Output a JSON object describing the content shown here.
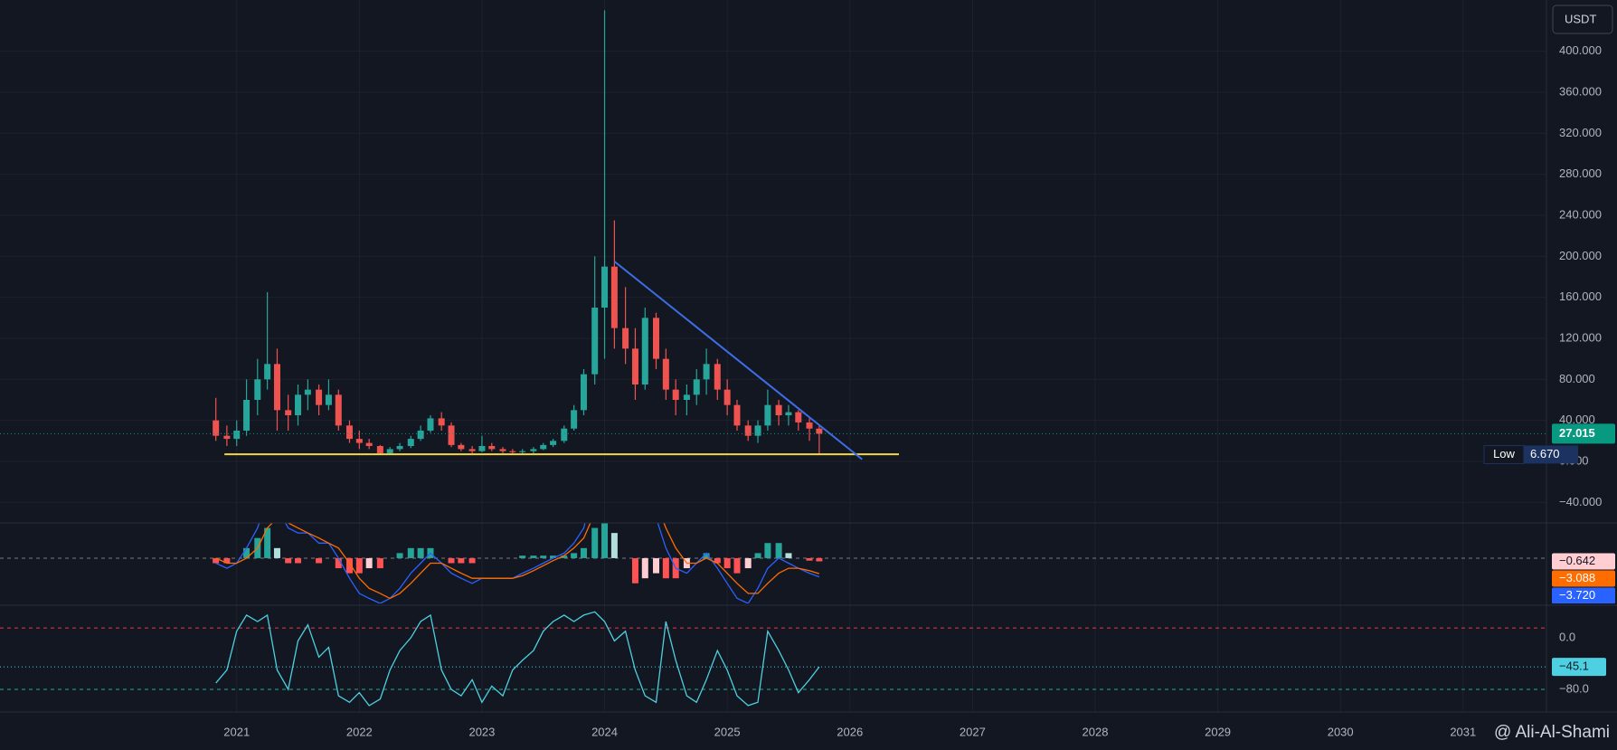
{
  "chart_data": {
    "type": "candlestick",
    "currency": "USDT",
    "watermark": "@ Ali-Al-Shami",
    "x": [
      2020.83,
      2020.92,
      2021.0,
      2021.08,
      2021.17,
      2021.25,
      2021.33,
      2021.42,
      2021.5,
      2021.58,
      2021.67,
      2021.75,
      2021.83,
      2021.92,
      2022.0,
      2022.08,
      2022.17,
      2022.25,
      2022.33,
      2022.42,
      2022.5,
      2022.58,
      2022.67,
      2022.75,
      2022.83,
      2022.92,
      2023.0,
      2023.08,
      2023.17,
      2023.25,
      2023.33,
      2023.42,
      2023.5,
      2023.58,
      2023.67,
      2023.75,
      2023.83,
      2023.92,
      2024.0,
      2024.08,
      2024.17,
      2024.25,
      2024.33,
      2024.42,
      2024.5,
      2024.58,
      2024.67,
      2024.75,
      2024.83,
      2024.92,
      2025.0,
      2025.08,
      2025.17,
      2025.25,
      2025.33,
      2025.42,
      2025.5,
      2025.58,
      2025.67,
      2025.75
    ],
    "xlim": [
      2019.07,
      2031.68
    ],
    "xticks": [
      2021,
      2022,
      2023,
      2024,
      2025,
      2026,
      2027,
      2028,
      2029,
      2030,
      2031
    ],
    "open": [
      40,
      25,
      22,
      30,
      60,
      80,
      95,
      50,
      45,
      65,
      70,
      55,
      65,
      35,
      22,
      18,
      15,
      8,
      12,
      15,
      22,
      30,
      42,
      35,
      16,
      12,
      10,
      15,
      12,
      10,
      9,
      10,
      12,
      16,
      20,
      32,
      50,
      85,
      150,
      190,
      130,
      110,
      75,
      140,
      100,
      70,
      60,
      65,
      80,
      95,
      70,
      55,
      35,
      25,
      35,
      55,
      45,
      48,
      38,
      32
    ],
    "high": [
      62,
      35,
      40,
      80,
      100,
      165,
      110,
      65,
      75,
      80,
      75,
      80,
      70,
      40,
      30,
      22,
      16,
      14,
      18,
      25,
      35,
      45,
      48,
      38,
      18,
      15,
      25,
      18,
      14,
      12,
      12,
      14,
      18,
      22,
      35,
      55,
      90,
      200,
      440,
      235,
      170,
      130,
      150,
      145,
      110,
      80,
      75,
      90,
      110,
      100,
      80,
      60,
      40,
      40,
      70,
      60,
      55,
      50,
      42,
      35
    ],
    "low": [
      20,
      15,
      15,
      25,
      45,
      70,
      30,
      30,
      35,
      50,
      45,
      50,
      30,
      18,
      12,
      12,
      6.67,
      7,
      10,
      13,
      20,
      28,
      30,
      14,
      10,
      8,
      9,
      10,
      8,
      7,
      7,
      8,
      11,
      14,
      18,
      30,
      45,
      75,
      100,
      110,
      95,
      60,
      70,
      90,
      60,
      45,
      45,
      55,
      65,
      60,
      45,
      30,
      20,
      18,
      30,
      35,
      35,
      30,
      20,
      7
    ],
    "close": [
      25,
      22,
      30,
      60,
      80,
      95,
      50,
      45,
      65,
      70,
      55,
      65,
      35,
      22,
      18,
      15,
      8,
      12,
      15,
      22,
      30,
      42,
      35,
      16,
      12,
      10,
      15,
      12,
      10,
      9,
      10,
      12,
      16,
      20,
      32,
      50,
      85,
      150,
      190,
      130,
      110,
      75,
      140,
      100,
      70,
      60,
      65,
      80,
      95,
      70,
      55,
      35,
      25,
      35,
      55,
      45,
      48,
      38,
      32,
      27.015
    ],
    "up_color": "#26a69a",
    "down_color": "#ef5350",
    "ylim": [
      -60,
      450
    ],
    "yticks": [
      {
        "value": -40,
        "label": "−40.000"
      },
      {
        "value": 0,
        "label": "0.000"
      },
      {
        "value": 40,
        "label": "40.000"
      },
      {
        "value": 80,
        "label": "80.000"
      },
      {
        "value": 120,
        "label": "120.000"
      },
      {
        "value": 160,
        "label": "160.000"
      },
      {
        "value": 200,
        "label": "200.000"
      },
      {
        "value": 240,
        "label": "240.000"
      },
      {
        "value": 280,
        "label": "280.000"
      },
      {
        "value": 320,
        "label": "320.000"
      },
      {
        "value": 360,
        "label": "360.000"
      },
      {
        "value": 400,
        "label": "400.000"
      }
    ],
    "grid": true,
    "last_price": 27.015,
    "last_price_color": "#089981",
    "period_low": {
      "name": "Low",
      "value": 6.67,
      "label": "6.670",
      "color": "#1c3260"
    },
    "trendline": {
      "x": [
        2024.08,
        2026.1
      ],
      "y": [
        195,
        2
      ],
      "color": "#3d6ee8"
    },
    "support": {
      "x": [
        2020.9,
        2026.4
      ],
      "y": [
        7,
        7
      ],
      "color": "#f5d742"
    },
    "indicators": [
      {
        "type": "macd",
        "ylim": [
          -9,
          7
        ],
        "histogram": {
          "values": [
            -1,
            -1,
            0,
            2,
            4,
            6,
            2,
            -1,
            -1,
            0,
            -1,
            0,
            -2,
            -3,
            -3,
            -2,
            -2,
            0,
            1,
            2,
            2,
            2,
            0,
            -1,
            -1,
            -1,
            0,
            0,
            0,
            0,
            0.5,
            0.5,
            0.5,
            0.5,
            0.5,
            1,
            2,
            6,
            12,
            5,
            0,
            -5,
            -4,
            -3,
            -4,
            -4,
            -2,
            0,
            1,
            -1,
            -2,
            -3,
            -2,
            1,
            3,
            3,
            1,
            0,
            -0.5,
            -0.642
          ],
          "colors": [
            "#26a69a",
            "#b2dfdb",
            "#ff5252",
            "#ffcdd2"
          ],
          "last_label": "−0.642"
        },
        "macd": {
          "values": [
            -1,
            -2,
            -1,
            2,
            6,
            12,
            10,
            6,
            5,
            5,
            3,
            3,
            0,
            -4,
            -7,
            -8,
            -9,
            -8,
            -6,
            -3,
            -1,
            1,
            -1,
            -3,
            -4,
            -5,
            -4,
            -4,
            -4,
            -4,
            -3,
            -2,
            -1,
            0,
            1,
            3,
            6,
            15,
            30,
            28,
            24,
            15,
            12,
            8,
            2,
            -2,
            -3,
            -1,
            1,
            -2,
            -5,
            -8,
            -9,
            -6,
            -2,
            0,
            -1,
            -2,
            -3,
            -3.72
          ],
          "color": "#2962ff",
          "last_label": "−3.720"
        },
        "signal": {
          "values": [
            0,
            -1,
            -1,
            0,
            2,
            6,
            8,
            7,
            6,
            5,
            4,
            3,
            2,
            -1,
            -4,
            -6,
            -7,
            -8,
            -7,
            -5,
            -3,
            -1,
            -1,
            -2,
            -3,
            -4,
            -4,
            -4,
            -4,
            -4,
            -3.5,
            -2.5,
            -1.5,
            -0.5,
            0.5,
            2,
            4,
            9,
            18,
            23,
            24,
            20,
            16,
            11,
            6,
            2,
            -1,
            -1,
            0,
            -1,
            -3,
            -5,
            -7,
            -7,
            -5,
            -3,
            -2,
            -2,
            -2.5,
            -3.088
          ],
          "color": "#ff6d00",
          "last_label": "−3.088"
        }
      },
      {
        "type": "oscillator",
        "ylim": [
          -115,
          46
        ],
        "yticks": [
          {
            "value": 0,
            "label": "0.0"
          },
          {
            "value": -80,
            "label": "−80.0"
          }
        ],
        "levels": [
          15,
          -80
        ],
        "level_colors": [
          "#f23645",
          "#22ab94"
        ],
        "values": [
          -70,
          -50,
          10,
          35,
          25,
          35,
          -50,
          -80,
          -5,
          20,
          -30,
          -15,
          -90,
          -100,
          -85,
          -105,
          -95,
          -50,
          -20,
          0,
          25,
          35,
          -50,
          -80,
          -90,
          -65,
          -100,
          -75,
          -90,
          -50,
          -35,
          -20,
          10,
          25,
          35,
          25,
          35,
          40,
          25,
          -5,
          10,
          -50,
          -90,
          -100,
          25,
          -35,
          -90,
          -100,
          -65,
          -20,
          -50,
          -90,
          -105,
          -100,
          10,
          -20,
          -50,
          -85,
          -65,
          -45.1
        ],
        "color": "#4dd0e1",
        "last_label": "−45.1"
      }
    ]
  }
}
